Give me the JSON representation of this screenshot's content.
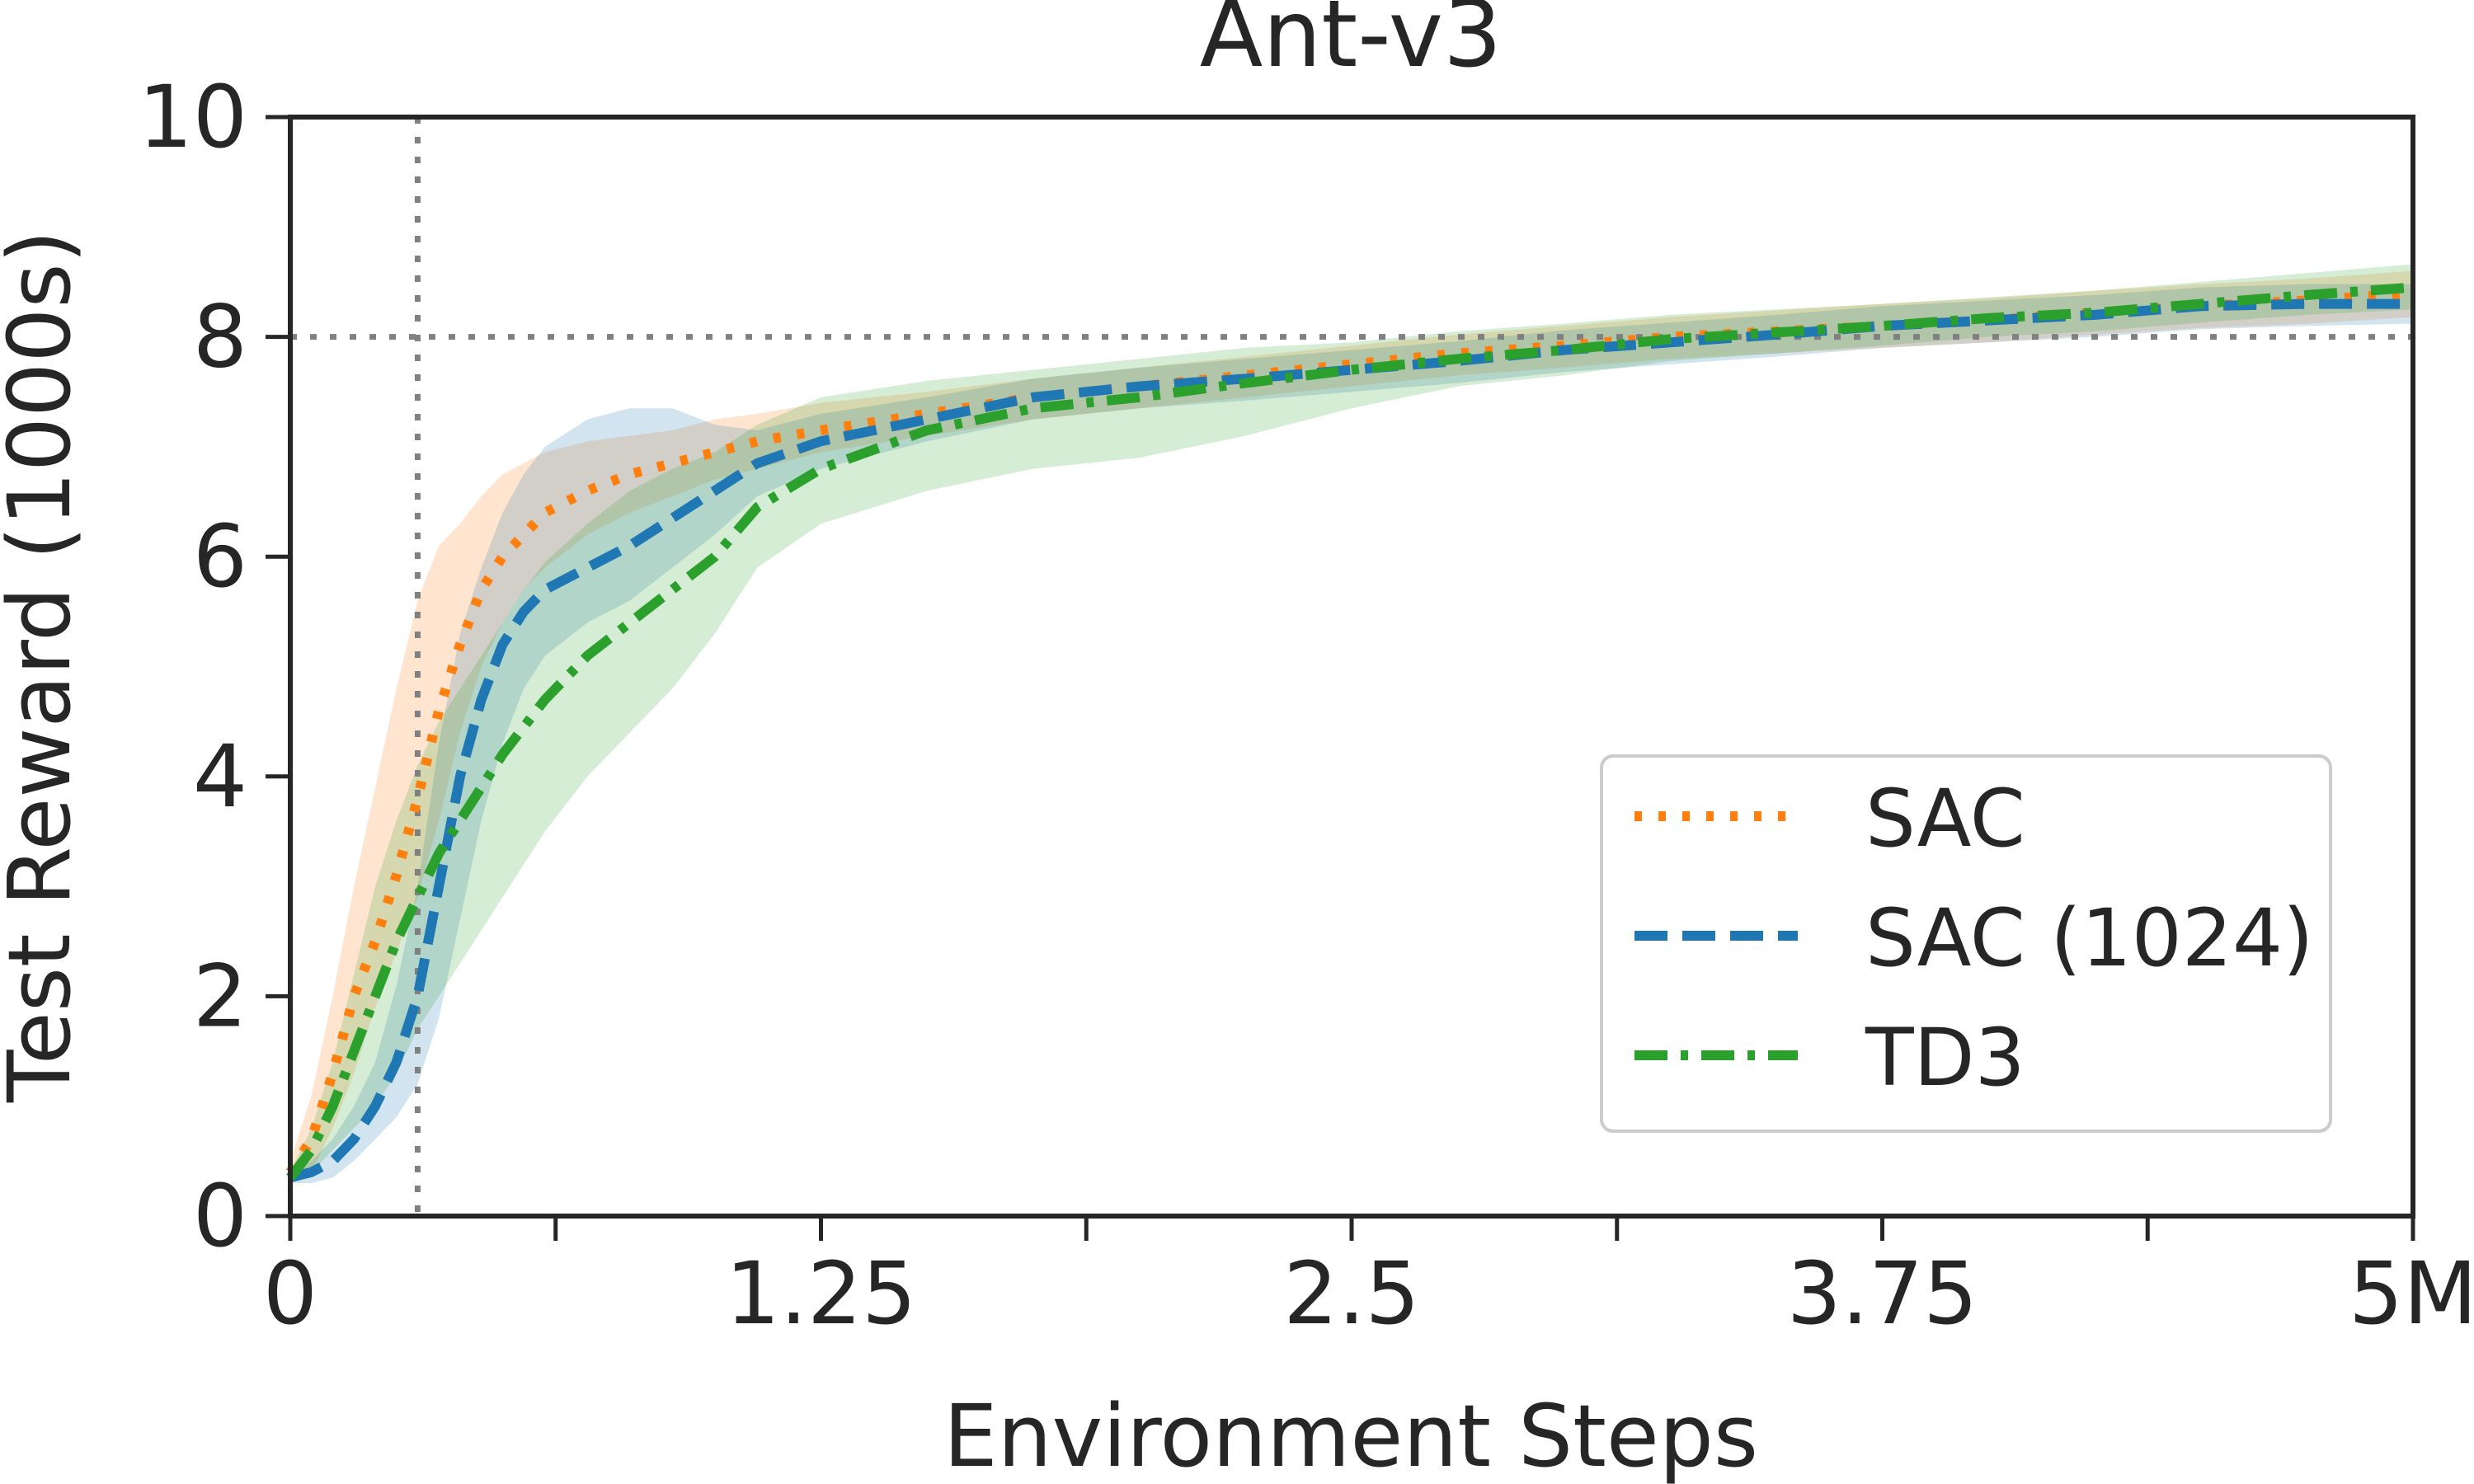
{
  "chart_data": {
    "type": "line",
    "title": "Ant-v3",
    "xlabel": "Environment Steps",
    "ylabel": "Test Reward (1000s)",
    "xlim": [
      0,
      5
    ],
    "ylim": [
      0,
      10
    ],
    "xticks": [
      0,
      0.625,
      1.25,
      1.875,
      2.5,
      3.125,
      3.75,
      4.375,
      5
    ],
    "xtick_labels": [
      {
        "value": 0,
        "label": "0"
      },
      {
        "value": 1.25,
        "label": "1.25"
      },
      {
        "value": 2.5,
        "label": "2.5"
      },
      {
        "value": 3.75,
        "label": "3.75"
      },
      {
        "value": 5,
        "label": "5M"
      }
    ],
    "yticks": [
      {
        "value": 0,
        "label": "0"
      },
      {
        "value": 2,
        "label": "2"
      },
      {
        "value": 4,
        "label": "4"
      },
      {
        "value": 6,
        "label": "6"
      },
      {
        "value": 8,
        "label": "8"
      },
      {
        "value": 10,
        "label": "10"
      }
    ],
    "reference_lines": {
      "vertical_x": 0.3,
      "horizontal_y": 8.0
    },
    "legend": {
      "position": "lower-right"
    },
    "grid": false,
    "series": [
      {
        "name": "SAC",
        "color": "#ff7f0e",
        "dash": "dotted",
        "x": [
          0,
          0.05,
          0.1,
          0.15,
          0.2,
          0.25,
          0.3,
          0.35,
          0.4,
          0.45,
          0.5,
          0.55,
          0.6,
          0.7,
          0.8,
          0.9,
          1.0,
          1.1,
          1.25,
          1.5,
          1.75,
          2.0,
          2.25,
          2.5,
          2.75,
          3.0,
          3.25,
          3.5,
          3.75,
          4.0,
          4.25,
          4.5,
          4.75,
          5.0
        ],
        "y": [
          0.4,
          0.7,
          1.3,
          2.0,
          2.5,
          3.1,
          3.8,
          4.6,
          5.2,
          5.7,
          6.0,
          6.2,
          6.4,
          6.6,
          6.75,
          6.85,
          6.95,
          7.05,
          7.15,
          7.3,
          7.45,
          7.55,
          7.65,
          7.75,
          7.85,
          7.92,
          8.0,
          8.05,
          8.1,
          8.15,
          8.22,
          8.28,
          8.33,
          8.4
        ],
        "lower": [
          0.3,
          0.4,
          0.8,
          1.3,
          1.9,
          2.4,
          2.9,
          3.6,
          4.4,
          5.0,
          5.4,
          5.7,
          5.9,
          6.2,
          6.4,
          6.55,
          6.7,
          6.8,
          6.95,
          7.1,
          7.25,
          7.35,
          7.45,
          7.55,
          7.65,
          7.72,
          7.8,
          7.85,
          7.9,
          7.95,
          8.02,
          8.08,
          8.12,
          8.18
        ],
        "upper": [
          0.5,
          1.1,
          2.0,
          3.0,
          3.9,
          4.8,
          5.6,
          6.1,
          6.3,
          6.55,
          6.75,
          6.85,
          6.95,
          7.05,
          7.1,
          7.15,
          7.25,
          7.3,
          7.4,
          7.5,
          7.62,
          7.72,
          7.82,
          7.92,
          8.02,
          8.1,
          8.18,
          8.24,
          8.3,
          8.35,
          8.42,
          8.48,
          8.53,
          8.6
        ]
      },
      {
        "name": "SAC (1024)",
        "color": "#1f77b4",
        "dash": "dashed",
        "x": [
          0,
          0.05,
          0.1,
          0.15,
          0.2,
          0.25,
          0.3,
          0.35,
          0.4,
          0.45,
          0.5,
          0.55,
          0.6,
          0.7,
          0.8,
          0.9,
          1.0,
          1.1,
          1.25,
          1.5,
          1.75,
          2.0,
          2.25,
          2.5,
          2.75,
          3.0,
          3.25,
          3.5,
          3.75,
          4.0,
          4.25,
          4.5,
          4.75,
          5.0
        ],
        "y": [
          0.35,
          0.4,
          0.5,
          0.7,
          1.0,
          1.4,
          2.0,
          3.0,
          4.0,
          4.7,
          5.2,
          5.5,
          5.7,
          5.9,
          6.1,
          6.35,
          6.6,
          6.85,
          7.05,
          7.25,
          7.45,
          7.55,
          7.62,
          7.7,
          7.78,
          7.88,
          7.95,
          8.02,
          8.1,
          8.15,
          8.2,
          8.28,
          8.3,
          8.3
        ],
        "lower": [
          0.3,
          0.3,
          0.35,
          0.5,
          0.7,
          0.9,
          1.2,
          1.8,
          2.7,
          3.6,
          4.3,
          4.8,
          5.1,
          5.4,
          5.6,
          5.9,
          6.2,
          6.55,
          6.8,
          7.05,
          7.25,
          7.35,
          7.42,
          7.5,
          7.58,
          7.68,
          7.75,
          7.82,
          7.9,
          7.95,
          8.0,
          8.07,
          8.1,
          8.12
        ],
        "upper": [
          0.4,
          0.5,
          0.7,
          1.0,
          1.4,
          2.1,
          3.0,
          4.3,
          5.3,
          5.9,
          6.4,
          6.75,
          7.0,
          7.25,
          7.35,
          7.35,
          7.2,
          7.15,
          7.3,
          7.45,
          7.62,
          7.72,
          7.8,
          7.88,
          7.96,
          8.06,
          8.13,
          8.2,
          8.28,
          8.33,
          8.38,
          8.45,
          8.48,
          8.48
        ]
      },
      {
        "name": "TD3",
        "color": "#2ca02c",
        "dash": "dashdot",
        "x": [
          0,
          0.05,
          0.1,
          0.15,
          0.2,
          0.25,
          0.3,
          0.35,
          0.4,
          0.45,
          0.5,
          0.55,
          0.6,
          0.7,
          0.8,
          0.9,
          1.0,
          1.1,
          1.25,
          1.5,
          1.75,
          2.0,
          2.25,
          2.5,
          2.75,
          3.0,
          3.25,
          3.5,
          3.75,
          4.0,
          4.25,
          4.5,
          4.75,
          5.0
        ],
        "y": [
          0.35,
          0.6,
          1.0,
          1.5,
          2.0,
          2.5,
          2.9,
          3.3,
          3.6,
          3.9,
          4.2,
          4.45,
          4.7,
          5.1,
          5.4,
          5.7,
          6.0,
          6.45,
          6.8,
          7.15,
          7.35,
          7.45,
          7.58,
          7.7,
          7.8,
          7.88,
          7.98,
          8.04,
          8.1,
          8.17,
          8.22,
          8.3,
          8.38,
          8.45
        ],
        "lower": [
          0.3,
          0.4,
          0.6,
          0.8,
          1.0,
          1.3,
          1.7,
          2.0,
          2.3,
          2.6,
          2.9,
          3.2,
          3.5,
          4.0,
          4.4,
          4.8,
          5.3,
          5.9,
          6.3,
          6.6,
          6.8,
          6.9,
          7.1,
          7.35,
          7.55,
          7.65,
          7.78,
          7.85,
          7.92,
          8.0,
          8.05,
          8.13,
          8.2,
          8.25
        ],
        "upper": [
          0.4,
          0.8,
          1.4,
          2.2,
          3.0,
          3.6,
          4.1,
          4.5,
          4.8,
          5.1,
          5.4,
          5.7,
          5.95,
          6.3,
          6.6,
          6.8,
          6.95,
          7.2,
          7.45,
          7.6,
          7.7,
          7.8,
          7.9,
          7.95,
          8.05,
          8.12,
          8.2,
          8.25,
          8.3,
          8.36,
          8.42,
          8.5,
          8.58,
          8.66
        ]
      }
    ]
  }
}
